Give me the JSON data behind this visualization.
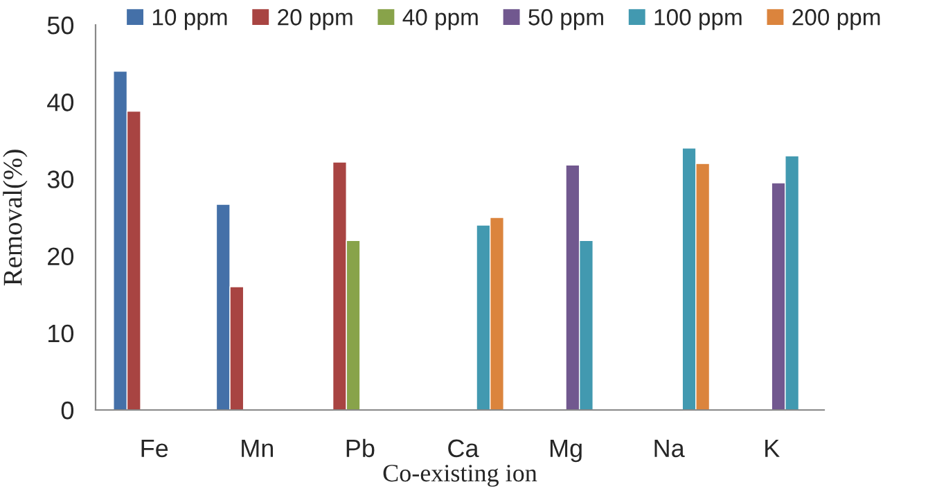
{
  "chart_data": {
    "type": "bar",
    "xlabel": "Co-existing ion",
    "ylabel": "Removal(%)",
    "categories": [
      "Fe",
      "Mn",
      "Pb",
      "Ca",
      "Mg",
      "Na",
      "K"
    ],
    "series": [
      {
        "name": "10 ppm",
        "color": "#4470a8",
        "values": [
          44,
          26.7,
          null,
          null,
          null,
          null,
          null
        ]
      },
      {
        "name": "20 ppm",
        "color": "#a84442",
        "values": [
          38.8,
          16,
          32.2,
          null,
          null,
          null,
          null
        ]
      },
      {
        "name": "40 ppm",
        "color": "#88a34a",
        "values": [
          null,
          null,
          22,
          null,
          null,
          null,
          null
        ]
      },
      {
        "name": "50 ppm",
        "color": "#71588f",
        "values": [
          null,
          null,
          null,
          null,
          31.8,
          null,
          29.5
        ]
      },
      {
        "name": "100 ppm",
        "color": "#4299b0",
        "values": [
          null,
          null,
          null,
          24,
          22,
          34,
          33
        ]
      },
      {
        "name": "200 ppm",
        "color": "#db843d",
        "values": [
          null,
          null,
          null,
          25,
          null,
          32,
          null
        ]
      }
    ],
    "ylim": [
      0,
      50
    ],
    "yticks": [
      0,
      10,
      20,
      30,
      40,
      50
    ],
    "grid": false,
    "legend": "top"
  }
}
